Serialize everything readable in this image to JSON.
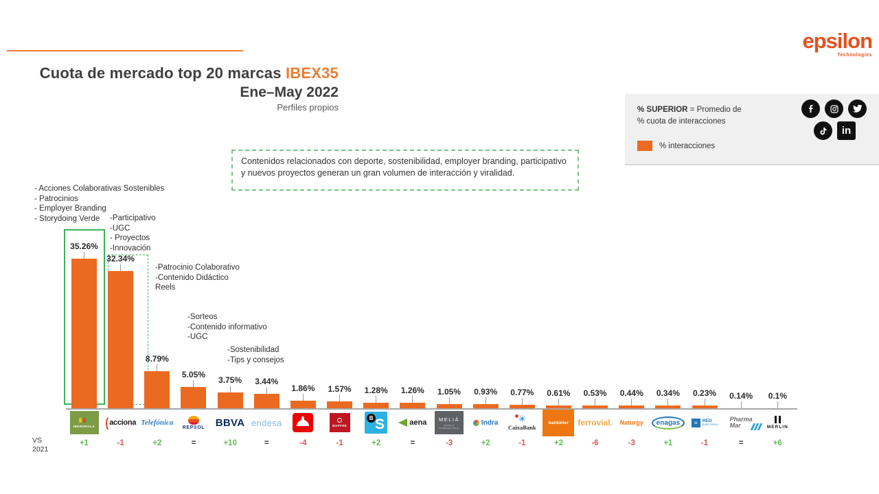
{
  "header": {
    "title_main": "Cuota de mercado top 20 marcas ",
    "title_highlight": "IBEX35",
    "title_line2": "Ene–May 2022",
    "title_line3": "Perfiles propios",
    "accent_color": "#ED7D31"
  },
  "brand_logo": {
    "word": "epsilon",
    "sub": "Technologies",
    "color": "#E8501E"
  },
  "legend": {
    "line1_bold": "% SUPERIOR",
    "line1_rest": " = Promedio de",
    "line2": "% cuota de interacciones",
    "swatch_label": "% interacciones",
    "swatch_color": "#EB6A21",
    "social_icons": [
      "facebook-icon",
      "instagram-icon",
      "twitter-icon",
      "tiktok-icon",
      "linkedin-icon"
    ],
    "linkedin_text": "in"
  },
  "callout": {
    "text": "Contenidos relacionados con deporte, sostenibilidad, employer branding, participativo y nuevos proyectos generan un gran volumen de interacción y viralidad."
  },
  "annotations": [
    {
      "lines": [
        "- Acciones Colaborativas Sostenibles",
        "- Patrocinios",
        "- Employer Branding",
        "- Storydoing Verde"
      ]
    },
    {
      "lines": [
        "-Participativo",
        "-UGC",
        "- Proyectos",
        "-Innovación"
      ]
    },
    {
      "lines": [
        "-Patrocinio Colaborativo",
        "-Contenido Didáctico",
        "Reels"
      ]
    },
    {
      "lines": [
        "-Sorteos",
        "-Contenido informativo",
        "-UGC"
      ]
    },
    {
      "lines": [
        "-Sostenibilidad",
        "-Tips y consejos"
      ]
    }
  ],
  "vs_label": {
    "line1": "VS",
    "line2": "2021"
  },
  "chart_data": {
    "type": "bar",
    "title": "Cuota de mercado top 20 marcas IBEX35 — Ene–May 2022 — Perfiles propios",
    "xlabel": "",
    "ylabel": "% interacciones (cuota de mercado)",
    "ylim": [
      0,
      36
    ],
    "grid": false,
    "legend_position": "top-right",
    "bar_color": "#EB6A21",
    "highlight_boxes": [
      {
        "index": 0,
        "style": "solid-green"
      },
      {
        "index": 1,
        "style": "dashed-green"
      }
    ],
    "categories": [
      "Iberdrola",
      "Acciona",
      "Telefónica",
      "Repsol",
      "BBVA",
      "Endesa",
      "Santander",
      "Mapfre",
      "Banco Sabadell",
      "Aena",
      "Meliá",
      "Indra",
      "CaixaBank",
      "Bankinter",
      "Ferrovial",
      "Naturgy",
      "Enagás",
      "Red Eléctrica",
      "PharmaMar",
      "Merlin"
    ],
    "values": [
      35.26,
      32.34,
      8.79,
      5.05,
      3.75,
      3.44,
      1.86,
      1.57,
      1.28,
      1.26,
      1.05,
      0.93,
      0.77,
      0.61,
      0.53,
      0.44,
      0.34,
      0.23,
      0.14,
      0.1
    ],
    "value_labels": [
      "35.26%",
      "32.34%",
      "8.79%",
      "5.05%",
      "3.75%",
      "3.44%",
      "1.86%",
      "1.57%",
      "1.28%",
      "1.26%",
      "1.05%",
      "0.93%",
      "0.77%",
      "0.61%",
      "0.53%",
      "0.44%",
      "0.34%",
      "0.23%",
      "0.14%",
      "0.1%"
    ],
    "vs_2021": [
      "+1",
      "-1",
      "+2",
      "=",
      "+10",
      "=",
      "-4",
      "-1",
      "+2",
      "=",
      "-3",
      "+2",
      "-1",
      "+2",
      "-6",
      "-3",
      "+1",
      "-1",
      "=",
      "+6"
    ],
    "vs_colors": {
      "up": "#5FBE54",
      "down": "#E25550",
      "equal": "#333333"
    },
    "logos": [
      {
        "type": "iberdrola",
        "text": "IBERDROLA"
      },
      {
        "type": "acciona",
        "curve": "(",
        "text": "acciona"
      },
      {
        "type": "telefonica",
        "text": "Telefónica"
      },
      {
        "type": "repsol",
        "text": "REPSOL"
      },
      {
        "type": "bbva",
        "text": "BBVA"
      },
      {
        "type": "endesa",
        "text": "endesa"
      },
      {
        "type": "santander",
        "text": ""
      },
      {
        "type": "mapfre",
        "text": "MAPFRE"
      },
      {
        "type": "sabadell",
        "badge": "B",
        "text": "S"
      },
      {
        "type": "aena",
        "text": "aena"
      },
      {
        "type": "melia",
        "text": "MELIÁ",
        "sub": "HOTELS INTERNATIONAL"
      },
      {
        "type": "indra",
        "text": "Indra"
      },
      {
        "type": "caixabank",
        "star": "✳",
        "text": "CaixaBank"
      },
      {
        "type": "bankinter",
        "text": "bankinter"
      },
      {
        "type": "ferrovial",
        "text": "ferrovial."
      },
      {
        "type": "naturgy",
        "text": "Naturgy"
      },
      {
        "type": "enagas",
        "text": "enagas"
      },
      {
        "type": "ree",
        "text": "RED",
        "sub": "ELÉCTRICA"
      },
      {
        "type": "pharmamar",
        "text": "Pharma",
        "text2": "Mar"
      },
      {
        "type": "merlin",
        "text": "MERLIN"
      }
    ]
  }
}
